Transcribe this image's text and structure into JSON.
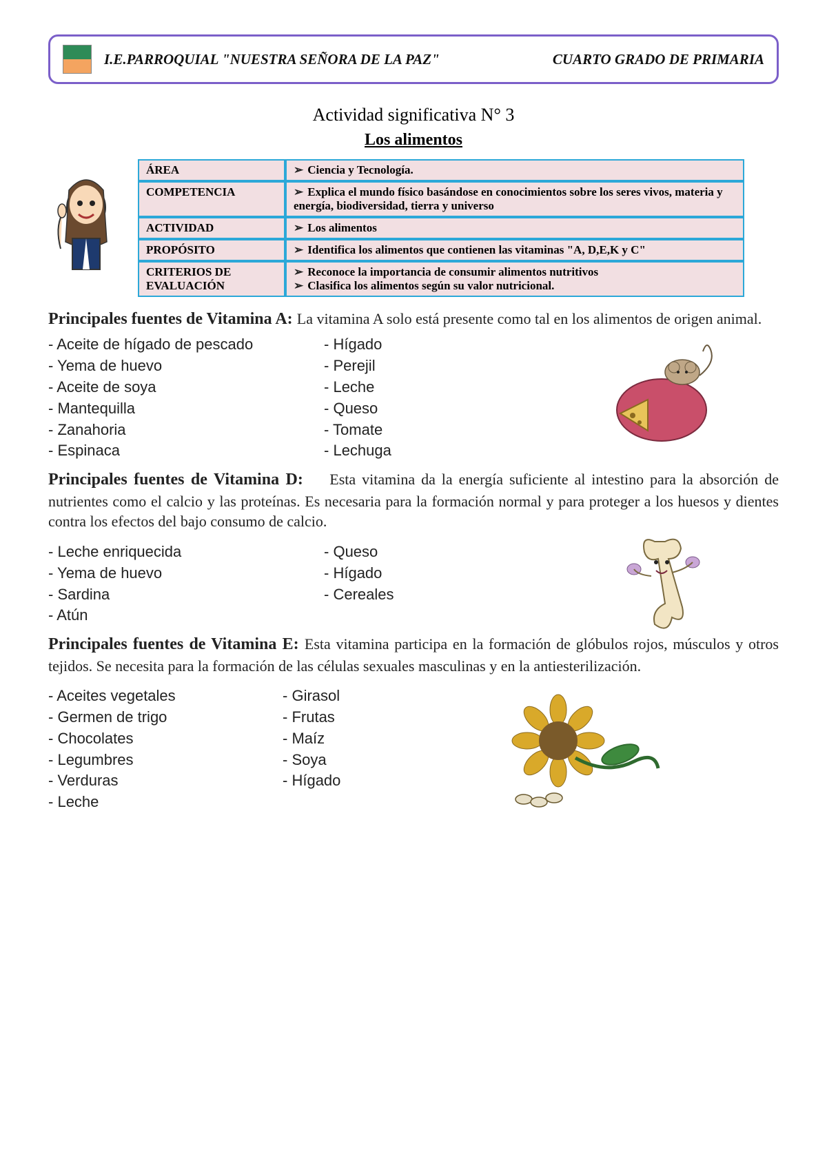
{
  "header": {
    "left": "I.E.PARROQUIAL \"NUESTRA SEÑORA DE LA PAZ\"",
    "right": "CUARTO GRADO DE PRIMARIA"
  },
  "activity": {
    "line1": "Actividad significativa N° 3",
    "line2": "Los alimentos"
  },
  "table": {
    "rows": [
      {
        "label": "ÁREA",
        "value": "Ciencia y Tecnología."
      },
      {
        "label": "COMPETENCIA",
        "value": "Explica el mundo físico basándose en conocimientos sobre los seres vivos, materia y energía, biodiversidad, tierra y universo"
      },
      {
        "label": "ACTIVIDAD",
        "value": "Los alimentos"
      },
      {
        "label": "PROPÓSITO",
        "value": "Identifica los alimentos que contienen las vitaminas \"A, D,E,K y C\""
      },
      {
        "label": "CRITERIOS DE EVALUACIÓN",
        "value": "Reconoce la importancia de consumir alimentos nutritivos",
        "value2": "Clasifica los alimentos según su valor nutricional."
      }
    ]
  },
  "vitA": {
    "title": "Principales fuentes de Vitamina A:",
    "text": "La vitamina A solo está presente como tal en los alimentos de origen animal.",
    "col1": [
      "Aceite de hígado de pescado",
      "Yema de huevo",
      "Aceite de soya",
      "Mantequilla",
      "Zanahoria",
      "Espinaca"
    ],
    "col2": [
      "Hígado",
      "Perejil",
      "Leche",
      "Queso",
      "Tomate",
      "Lechuga"
    ]
  },
  "vitD": {
    "title": "Principales fuentes de Vitamina D:",
    "text": "Esta vitamina da la energía suficiente al intestino para la absorción de nutrientes como el calcio y las proteínas. Es necesaria para la formación normal y para proteger a los huesos y dientes contra los efectos del bajo consumo de calcio.",
    "col1": [
      "Leche enriquecida",
      "Yema de huevo",
      "Sardina",
      "Atún"
    ],
    "col2": [
      "Queso",
      "Hígado",
      "Cereales"
    ]
  },
  "vitE": {
    "title": "Principales fuentes de Vitamina E:",
    "text": "Esta vitamina participa en la formación de glóbulos rojos, músculos y otros tejidos. Se necesita para la formación de las células sexuales masculinas y en la antiesterilización.",
    "col1": [
      "Aceites vegetales",
      "Germen de trigo",
      "Chocolates",
      "Legumbres",
      "Verduras",
      "Leche"
    ],
    "col2": [
      "Girasol",
      "Frutas",
      "Maíz",
      "Soya",
      "Hígado"
    ]
  }
}
